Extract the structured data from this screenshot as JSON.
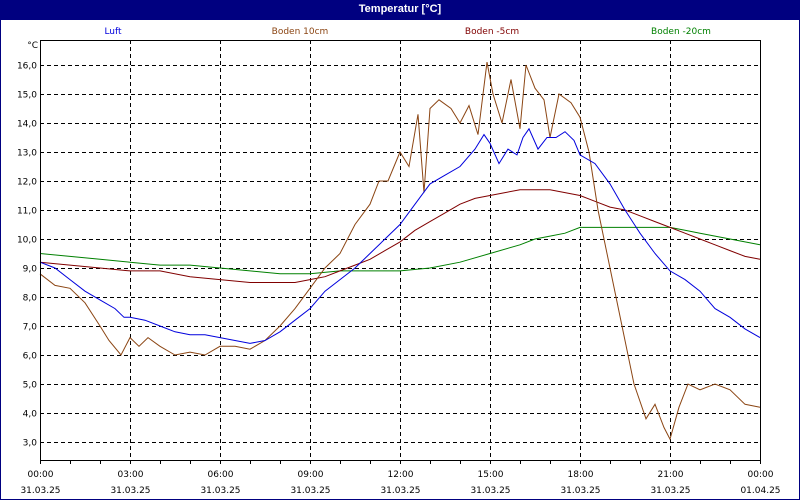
{
  "window": {
    "title": "Temperatur [°C]"
  },
  "colors": {
    "titlebar": "#000080",
    "luft": "#0000dd",
    "boden10": "#8b4513",
    "boden5": "#800000",
    "boden20": "#008000",
    "grid": "#000000"
  },
  "chart_data": {
    "type": "line",
    "title": "Temperatur [°C]",
    "ylabel": "°C",
    "xlabel": "",
    "ylim": [
      2.4,
      16.9
    ],
    "grid": true,
    "legend_position": "top",
    "yticks": [
      "16,0",
      "15,0",
      "14,0",
      "13,0",
      "12,0",
      "11,0",
      "10,0",
      "9,0",
      "8,0",
      "7,0",
      "6,0",
      "5,0",
      "4,0",
      "3,0"
    ],
    "xticks": [
      {
        "time": "00:00",
        "date": "31.03.25"
      },
      {
        "time": "03:00",
        "date": "31.03.25"
      },
      {
        "time": "06:00",
        "date": "31.03.25"
      },
      {
        "time": "09:00",
        "date": "31.03.25"
      },
      {
        "time": "12:00",
        "date": "31.03.25"
      },
      {
        "time": "15:00",
        "date": "31.03.25"
      },
      {
        "time": "18:00",
        "date": "31.03.25"
      },
      {
        "time": "21:00",
        "date": "31.03.25"
      },
      {
        "time": "00:00",
        "date": "01.04.25"
      }
    ],
    "series": [
      {
        "name": "Luft",
        "color": "#0000dd",
        "x": [
          0,
          0.5,
          1,
          1.5,
          2,
          2.5,
          2.8,
          3,
          3.5,
          4,
          4.5,
          5,
          5.5,
          6,
          6.5,
          7,
          7.5,
          8,
          8.5,
          9,
          9.5,
          10,
          10.5,
          11,
          11.5,
          12,
          12.5,
          13,
          13.5,
          14,
          14.5,
          14.8,
          15,
          15.3,
          15.6,
          15.9,
          16.1,
          16.3,
          16.6,
          16.9,
          17.2,
          17.5,
          17.8,
          18,
          18.5,
          19,
          19.5,
          20,
          20.5,
          21,
          21.5,
          22,
          22.5,
          23,
          23.5,
          24
        ],
        "y": [
          9.2,
          9.0,
          8.6,
          8.2,
          7.9,
          7.6,
          7.3,
          7.3,
          7.2,
          7.0,
          6.8,
          6.7,
          6.7,
          6.6,
          6.5,
          6.4,
          6.5,
          6.8,
          7.2,
          7.6,
          8.2,
          8.6,
          9.0,
          9.5,
          10.0,
          10.5,
          11.2,
          11.9,
          12.2,
          12.5,
          13.1,
          13.6,
          13.3,
          12.6,
          13.1,
          12.9,
          13.5,
          13.8,
          13.1,
          13.5,
          13.5,
          13.7,
          13.4,
          12.9,
          12.6,
          11.9,
          11.0,
          10.2,
          9.5,
          8.9,
          8.6,
          8.2,
          7.6,
          7.3,
          6.9,
          6.6
        ]
      },
      {
        "name": "Boden 10cm",
        "color": "#8b4513",
        "x": [
          0,
          0.5,
          1,
          1.5,
          2,
          2.3,
          2.7,
          3,
          3.3,
          3.6,
          4,
          4.5,
          5,
          5.5,
          6,
          6.5,
          7,
          7.5,
          8,
          8.5,
          9,
          9.5,
          10,
          10.5,
          11,
          11.3,
          11.6,
          12,
          12.3,
          12.6,
          12.8,
          13,
          13.3,
          13.7,
          14,
          14.3,
          14.6,
          14.9,
          15.1,
          15.4,
          15.7,
          16,
          16.2,
          16.5,
          16.8,
          17,
          17.3,
          17.7,
          18,
          18.3,
          18.6,
          19,
          19.4,
          19.8,
          20.2,
          20.5,
          20.8,
          21,
          21.3,
          21.6,
          22,
          22.5,
          23,
          23.5,
          24
        ],
        "y": [
          8.8,
          8.4,
          8.3,
          7.8,
          7.0,
          6.5,
          6.0,
          6.6,
          6.3,
          6.6,
          6.3,
          6.0,
          6.1,
          6.0,
          6.3,
          6.3,
          6.2,
          6.5,
          7.0,
          7.6,
          8.3,
          9.0,
          9.5,
          10.5,
          11.2,
          12.0,
          12.0,
          13.0,
          12.5,
          14.3,
          11.6,
          14.5,
          14.8,
          14.5,
          14.0,
          14.6,
          13.6,
          16.1,
          15.0,
          14.0,
          15.5,
          13.8,
          16.0,
          15.2,
          14.8,
          13.5,
          15.0,
          14.7,
          14.2,
          13.0,
          11.0,
          9.0,
          7.0,
          5.0,
          3.8,
          4.3,
          3.5,
          3.1,
          4.2,
          5.0,
          4.8,
          5.0,
          4.8,
          4.3,
          4.2
        ]
      },
      {
        "name": "Boden -5cm",
        "color": "#800000",
        "x": [
          0,
          1,
          2,
          3,
          4,
          5,
          6,
          7,
          7.5,
          8,
          8.5,
          9,
          9.5,
          10,
          10.5,
          11,
          11.5,
          12,
          12.5,
          13,
          13.5,
          14,
          14.5,
          15,
          15.5,
          16,
          16.5,
          17,
          17.5,
          18,
          18.5,
          19,
          19.5,
          20,
          20.5,
          21,
          21.5,
          22,
          22.5,
          23,
          23.5,
          24
        ],
        "y": [
          9.2,
          9.1,
          9.0,
          8.9,
          8.9,
          8.7,
          8.6,
          8.5,
          8.5,
          8.5,
          8.5,
          8.6,
          8.7,
          8.9,
          9.1,
          9.3,
          9.6,
          9.9,
          10.3,
          10.6,
          10.9,
          11.2,
          11.4,
          11.5,
          11.6,
          11.7,
          11.7,
          11.7,
          11.6,
          11.5,
          11.3,
          11.1,
          11.0,
          10.8,
          10.6,
          10.4,
          10.2,
          10.0,
          9.8,
          9.6,
          9.4,
          9.3
        ]
      },
      {
        "name": "Boden -20cm",
        "color": "#008000",
        "x": [
          0,
          1,
          2,
          3,
          4,
          5,
          6,
          7,
          8,
          9,
          10,
          11,
          12,
          13,
          14,
          15,
          16,
          16.5,
          17,
          17.5,
          18,
          19,
          20,
          21,
          21.5,
          22,
          22.5,
          23,
          23.5,
          24
        ],
        "y": [
          9.5,
          9.4,
          9.3,
          9.2,
          9.1,
          9.1,
          9.0,
          8.9,
          8.8,
          8.8,
          8.9,
          8.9,
          8.9,
          9.0,
          9.2,
          9.5,
          9.8,
          10.0,
          10.1,
          10.2,
          10.4,
          10.4,
          10.4,
          10.4,
          10.3,
          10.2,
          10.1,
          10.0,
          9.9,
          9.8
        ]
      }
    ]
  }
}
